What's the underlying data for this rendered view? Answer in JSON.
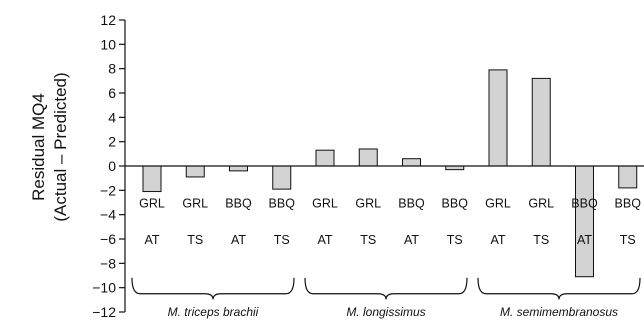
{
  "chart_data": {
    "type": "bar",
    "ylabel_line1": "Residual MQ4",
    "ylabel_line2": "(Actual – Predicted)",
    "ylim": [
      -12,
      12
    ],
    "yticks": [
      12,
      10,
      8,
      6,
      4,
      2,
      0,
      -2,
      -4,
      -6,
      -8,
      -10,
      -12
    ],
    "categories": [
      {
        "line1": "GRL",
        "line2": "AT"
      },
      {
        "line1": "GRL",
        "line2": "TS"
      },
      {
        "line1": "BBQ",
        "line2": "AT"
      },
      {
        "line1": "BBQ",
        "line2": "TS"
      },
      {
        "line1": "GRL",
        "line2": "AT"
      },
      {
        "line1": "GRL",
        "line2": "TS"
      },
      {
        "line1": "BBQ",
        "line2": "AT"
      },
      {
        "line1": "BBQ",
        "line2": "TS"
      },
      {
        "line1": "GRL",
        "line2": "AT"
      },
      {
        "line1": "GRL",
        "line2": "TS"
      },
      {
        "line1": "BBQ",
        "line2": "AT"
      },
      {
        "line1": "BBQ",
        "line2": "TS"
      }
    ],
    "values": [
      -2.1,
      -0.9,
      -0.4,
      -1.9,
      1.3,
      1.4,
      0.6,
      -0.3,
      7.9,
      7.2,
      -9.1,
      -1.8
    ],
    "groups": [
      {
        "label": "M. triceps brachii",
        "from": 0,
        "to": 3
      },
      {
        "label": "M. longissimus",
        "from": 4,
        "to": 7
      },
      {
        "label": "M. semimembranosus",
        "from": 8,
        "to": 11
      }
    ],
    "grid": false,
    "bar_color": "#d3d3d3"
  }
}
